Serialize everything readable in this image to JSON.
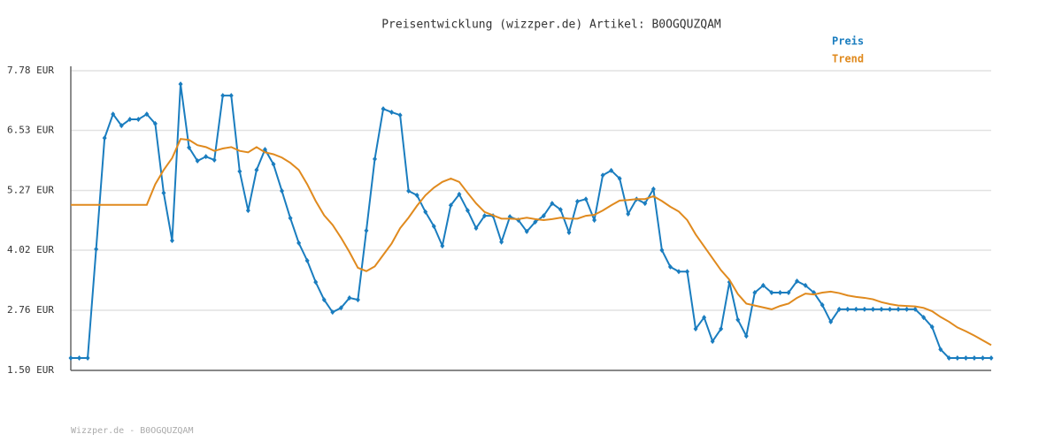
{
  "chart_data": {
    "type": "line",
    "title": "Preisentwicklung (wizzper.de) Artikel: B0OGQUZQAM",
    "footer": "Wizzper.de - B0OGQUZQAM",
    "ylim": [
      1.5,
      7.78
    ],
    "yticks": [
      {
        "value": 1.5,
        "label": "1.50 EUR"
      },
      {
        "value": 2.76,
        "label": "2.76 EUR"
      },
      {
        "value": 4.02,
        "label": "4.02 EUR"
      },
      {
        "value": 5.27,
        "label": "5.27 EUR"
      },
      {
        "value": 6.53,
        "label": "6.53 EUR"
      },
      {
        "value": 7.78,
        "label": "7.78 EUR"
      }
    ],
    "grid": true,
    "legend": "top-right",
    "series": [
      {
        "name": "Preis",
        "color": "#1a7dbf",
        "markers": true,
        "values": [
          1.76,
          1.76,
          1.76,
          4.04,
          6.37,
          6.87,
          6.63,
          6.76,
          6.76,
          6.87,
          6.67,
          5.22,
          4.22,
          7.5,
          6.17,
          5.89,
          5.98,
          5.91,
          7.26,
          7.26,
          5.67,
          4.85,
          5.7,
          6.13,
          5.82,
          5.26,
          4.69,
          4.17,
          3.8,
          3.35,
          2.98,
          2.72,
          2.81,
          3.02,
          2.98,
          4.43,
          5.93,
          6.98,
          6.91,
          6.85,
          5.26,
          5.17,
          4.82,
          4.52,
          4.11,
          4.96,
          5.19,
          4.85,
          4.48,
          4.74,
          4.74,
          4.19,
          4.72,
          4.65,
          4.41,
          4.61,
          4.74,
          5.0,
          4.87,
          4.39,
          5.04,
          5.09,
          4.65,
          5.59,
          5.69,
          5.52,
          4.78,
          5.09,
          5.0,
          5.3,
          4.02,
          3.67,
          3.57,
          3.57,
          2.37,
          2.61,
          2.11,
          2.37,
          3.35,
          2.56,
          2.22,
          3.13,
          3.28,
          3.13,
          3.13,
          3.13,
          3.37,
          3.28,
          3.13,
          2.87,
          2.52,
          2.78,
          2.78,
          2.78,
          2.78,
          2.78,
          2.78,
          2.78,
          2.78,
          2.78,
          2.78,
          2.61,
          2.41,
          1.94,
          1.76,
          1.76,
          1.76,
          1.76,
          1.76,
          1.76
        ]
      },
      {
        "name": "Trend",
        "color": "#e08a1e",
        "markers": false,
        "values": [
          4.97,
          4.97,
          4.97,
          4.97,
          4.97,
          4.97,
          4.97,
          4.97,
          4.97,
          4.97,
          5.4,
          5.7,
          5.95,
          6.35,
          6.33,
          6.22,
          6.18,
          6.1,
          6.15,
          6.18,
          6.1,
          6.07,
          6.18,
          6.07,
          6.03,
          5.96,
          5.85,
          5.7,
          5.4,
          5.05,
          4.75,
          4.55,
          4.28,
          3.98,
          3.65,
          3.58,
          3.68,
          3.92,
          4.16,
          4.48,
          4.7,
          4.95,
          5.17,
          5.33,
          5.45,
          5.52,
          5.45,
          5.22,
          5.0,
          4.82,
          4.75,
          4.68,
          4.68,
          4.67,
          4.7,
          4.67,
          4.65,
          4.67,
          4.7,
          4.68,
          4.68,
          4.74,
          4.76,
          4.85,
          4.96,
          5.06,
          5.07,
          5.09,
          5.09,
          5.15,
          5.05,
          4.93,
          4.83,
          4.65,
          4.35,
          4.1,
          3.85,
          3.6,
          3.4,
          3.1,
          2.9,
          2.86,
          2.82,
          2.78,
          2.85,
          2.9,
          3.02,
          3.11,
          3.09,
          3.13,
          3.15,
          3.12,
          3.07,
          3.04,
          3.02,
          2.99,
          2.93,
          2.89,
          2.86,
          2.85,
          2.84,
          2.81,
          2.74,
          2.62,
          2.52,
          2.4,
          2.32,
          2.23,
          2.13,
          2.03
        ]
      }
    ]
  }
}
